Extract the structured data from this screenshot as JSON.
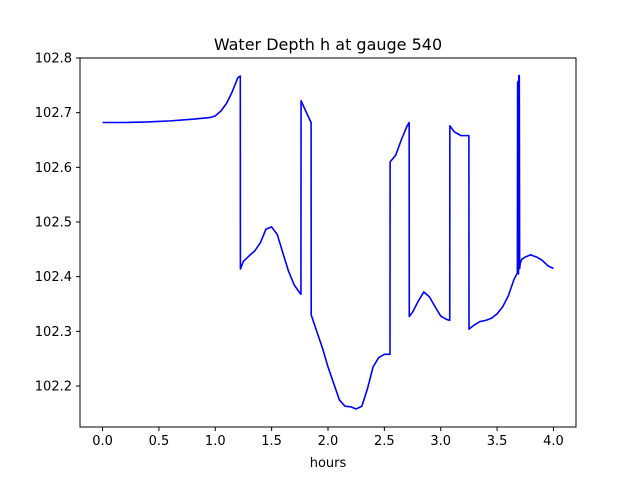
{
  "chart_data": {
    "type": "line",
    "title": "Water Depth h at gauge 540",
    "xlabel": "hours",
    "ylabel": "",
    "xlim": [
      -0.2,
      4.2
    ],
    "ylim": [
      102.125,
      102.8
    ],
    "xticks": [
      0.0,
      0.5,
      1.0,
      1.5,
      2.0,
      2.5,
      3.0,
      3.5,
      4.0
    ],
    "xtick_labels": [
      "0.0",
      "0.5",
      "1.0",
      "1.5",
      "2.0",
      "2.5",
      "3.0",
      "3.5",
      "4.0"
    ],
    "yticks": [
      102.2,
      102.3,
      102.4,
      102.5,
      102.6,
      102.7,
      102.8
    ],
    "ytick_labels": [
      "102.2",
      "102.3",
      "102.4",
      "102.5",
      "102.6",
      "102.7",
      "102.8"
    ],
    "grid": false,
    "legend": "none",
    "series": [
      {
        "name": "",
        "color": "#0000ff",
        "x": [
          0.0,
          0.2,
          0.4,
          0.6,
          0.8,
          0.95,
          1.0,
          1.05,
          1.1,
          1.15,
          1.2,
          1.222,
          1.223,
          1.25,
          1.3,
          1.35,
          1.4,
          1.45,
          1.5,
          1.55,
          1.6,
          1.65,
          1.7,
          1.75,
          1.76,
          1.761,
          1.8,
          1.85,
          1.851,
          1.9,
          1.95,
          2.0,
          2.05,
          2.1,
          2.15,
          2.2,
          2.25,
          2.3,
          2.35,
          2.4,
          2.45,
          2.5,
          2.55,
          2.551,
          2.6,
          2.65,
          2.7,
          2.72,
          2.721,
          2.75,
          2.8,
          2.85,
          2.9,
          2.95,
          3.0,
          3.05,
          3.08,
          3.081,
          3.12,
          3.18,
          3.25,
          3.251,
          3.3,
          3.35,
          3.4,
          3.45,
          3.5,
          3.55,
          3.6,
          3.65,
          3.68,
          3.682,
          3.685,
          3.69,
          3.693,
          3.697,
          3.7,
          3.703,
          3.706,
          3.72,
          3.75,
          3.8,
          3.82,
          3.85,
          3.9,
          3.95,
          4.0
        ],
        "y": [
          102.682,
          102.682,
          102.683,
          102.685,
          102.688,
          102.691,
          102.694,
          102.703,
          102.717,
          102.738,
          102.764,
          102.767,
          102.414,
          102.428,
          102.438,
          102.447,
          102.462,
          102.487,
          102.491,
          102.477,
          102.443,
          102.41,
          102.385,
          102.37,
          102.368,
          102.722,
          102.704,
          102.682,
          102.33,
          102.3,
          102.27,
          102.235,
          102.205,
          102.175,
          102.163,
          102.162,
          102.158,
          102.163,
          102.195,
          102.235,
          102.252,
          102.258,
          102.258,
          102.61,
          102.622,
          102.65,
          102.675,
          102.682,
          102.327,
          102.335,
          102.355,
          102.372,
          102.363,
          102.345,
          102.328,
          102.322,
          102.32,
          102.676,
          102.665,
          102.658,
          102.658,
          102.304,
          102.312,
          102.318,
          102.32,
          102.324,
          102.332,
          102.345,
          102.365,
          102.395,
          102.407,
          102.755,
          102.757,
          102.405,
          102.768,
          102.768,
          102.415,
          102.42,
          102.425,
          102.432,
          102.436,
          102.44,
          102.438,
          102.436,
          102.43,
          102.42,
          102.415
        ]
      }
    ]
  }
}
